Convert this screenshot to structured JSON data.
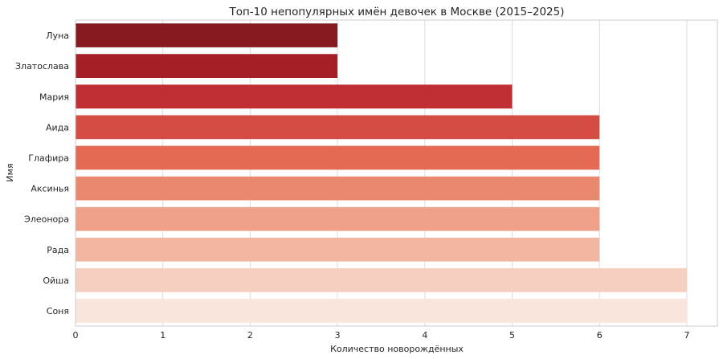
{
  "chart_data": {
    "type": "bar",
    "orientation": "horizontal",
    "title": "Топ-10 непопулярных имён девочек в Москве (2015–2025)",
    "xlabel": "Количество новорождённых",
    "ylabel": "Имя",
    "categories": [
      "Луна",
      "Златослава",
      "Мария",
      "Аида",
      "Глафира",
      "Аксинья",
      "Элеонора",
      "Рада",
      "Ойша",
      "Соня"
    ],
    "values": [
      3,
      3,
      5,
      6,
      6,
      6,
      6,
      6,
      7,
      7
    ],
    "colors": [
      "#851b20",
      "#a41f26",
      "#bf2f33",
      "#d54c42",
      "#e46a54",
      "#eb8970",
      "#eea088",
      "#f1b7a1",
      "#f5cfbf",
      "#fae5dd"
    ],
    "xlim": [
      0,
      7.35
    ],
    "xticks": [
      0,
      1,
      2,
      3,
      4,
      5,
      6,
      7
    ],
    "grid": "x",
    "legend": "none"
  }
}
